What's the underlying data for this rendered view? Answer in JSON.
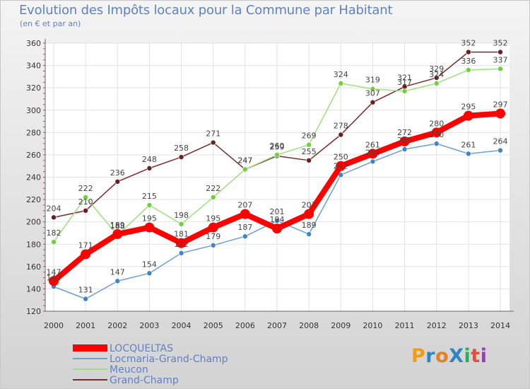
{
  "title": "Evolution des Impôts locaux pour la Commune par Habitant",
  "subtitle": "(en € et par an)",
  "logo": {
    "text": "ProXiti",
    "letter_colors": [
      "#f39c12",
      "#2e86c1",
      "#e67e22",
      "#2e86c1",
      "#27ae60",
      "#e74c3c",
      "#8e44ad"
    ]
  },
  "chart_data": {
    "type": "line",
    "x": [
      2000,
      2001,
      2002,
      2003,
      2004,
      2005,
      2006,
      2007,
      2008,
      2009,
      2010,
      2011,
      2012,
      2013,
      2014
    ],
    "ylim": [
      120,
      360
    ],
    "yticks": [
      120,
      140,
      160,
      180,
      200,
      220,
      240,
      260,
      280,
      300,
      320,
      340,
      360
    ],
    "grid": true,
    "legend_position": "bottom-left",
    "series": [
      {
        "name": "Grand-Champ",
        "color": "#7b2a2a",
        "marker_color": "#6b1f1f",
        "values": [
          204,
          210,
          236,
          248,
          258,
          271,
          247,
          259,
          255,
          278,
          307,
          321,
          329,
          352,
          352
        ]
      },
      {
        "name": "Meucon",
        "color": "#9de07a",
        "marker_color": "#6fcf3f",
        "values": [
          182,
          222,
          188,
          215,
          198,
          222,
          247,
          260,
          269,
          324,
          319,
          317,
          324,
          336,
          337
        ]
      },
      {
        "name": "Locmaria-Grand-Champ",
        "color": "#6b9fd4",
        "marker_color": "#3d85c6",
        "values": [
          142,
          131,
          147,
          154,
          172,
          179,
          187,
          201,
          189,
          242,
          254,
          265,
          270,
          261,
          264
        ]
      },
      {
        "name": "LOCQUELTAS",
        "color": "#ff0000",
        "marker_color": "#ff0000",
        "values": [
          147,
          171,
          189,
          195,
          181,
          195,
          207,
          194,
          207,
          250,
          261,
          272,
          280,
          295,
          297
        ]
      }
    ],
    "legend_order": [
      "LOCQUELTAS",
      "Locmaria-Grand-Champ",
      "Meucon",
      "Grand-Champ"
    ]
  }
}
